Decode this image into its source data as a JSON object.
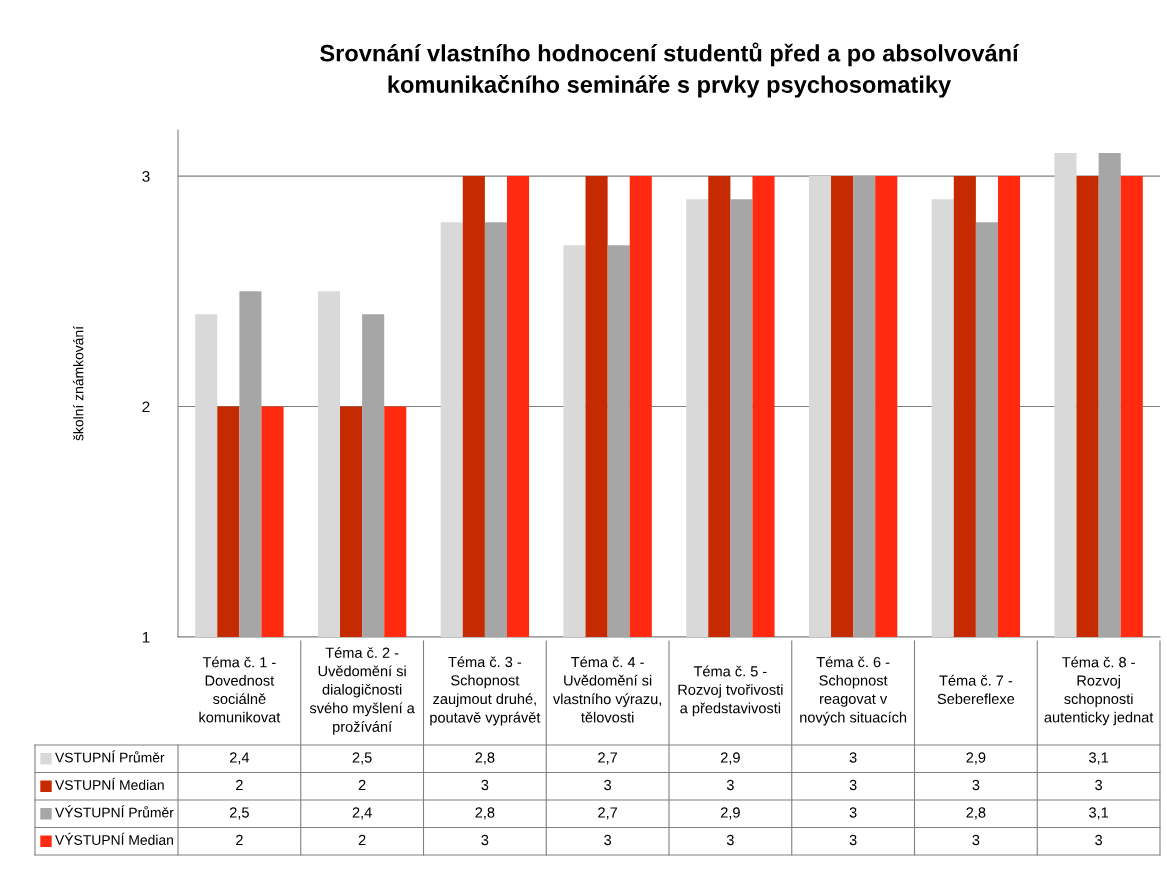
{
  "chart_data": {
    "type": "bar",
    "title": "Srovnání vlastního hodnocení studentů před a po absolvování komunikačního semináře s prvky psychosomatiky",
    "ylabel": "školní známkování",
    "categories": [
      "Téma č. 1 - Dovednost sociálně komunikovat",
      "Téma č. 2 - Uvědomění si dialogičnosti svého myšlení a prožívání",
      "Téma č. 3 - Schopnost zaujmout druhé, poutavě vyprávět",
      "Téma č. 4 - Uvědomění si vlastního výrazu, tělovosti",
      "Téma č. 5 - Rozvoj tvořivosti a představivosti",
      "Téma č. 6 - Schopnost reagovat v nových situacích",
      "Téma č. 7 - Sebereflexe",
      "Téma č. 8 - Rozvoj schopnosti autenticky jednat"
    ],
    "series": [
      {
        "name": "VSTUPNÍ Průměr",
        "color": "#d9d9d9",
        "values": [
          2.4,
          2.5,
          2.8,
          2.7,
          2.9,
          3,
          2.9,
          3.1
        ],
        "value_labels": [
          "2,4",
          "2,5",
          "2,8",
          "2,7",
          "2,9",
          "3",
          "2,9",
          "3,1"
        ]
      },
      {
        "name": "VSTUPNÍ Median",
        "color": "#c62a00",
        "values": [
          2,
          2,
          3,
          3,
          3,
          3,
          3,
          3
        ],
        "value_labels": [
          "2",
          "2",
          "3",
          "3",
          "3",
          "3",
          "3",
          "3"
        ]
      },
      {
        "name": "VÝSTUPNÍ Průměr",
        "color": "#a6a6a6",
        "values": [
          2.5,
          2.4,
          2.8,
          2.7,
          2.9,
          3,
          2.8,
          3.1
        ],
        "value_labels": [
          "2,5",
          "2,4",
          "2,8",
          "2,7",
          "2,9",
          "3",
          "2,8",
          "3,1"
        ]
      },
      {
        "name": "VÝSTUPNÍ Median",
        "color": "#ff2a10",
        "values": [
          2,
          2,
          3,
          3,
          3,
          3,
          3,
          3
        ],
        "value_labels": [
          "2",
          "2",
          "3",
          "3",
          "3",
          "3",
          "3",
          "3"
        ]
      }
    ],
    "ylim": [
      1,
      3.2
    ],
    "yticks": [
      1,
      2,
      3
    ],
    "grid": "y",
    "legend": "bottom left"
  }
}
